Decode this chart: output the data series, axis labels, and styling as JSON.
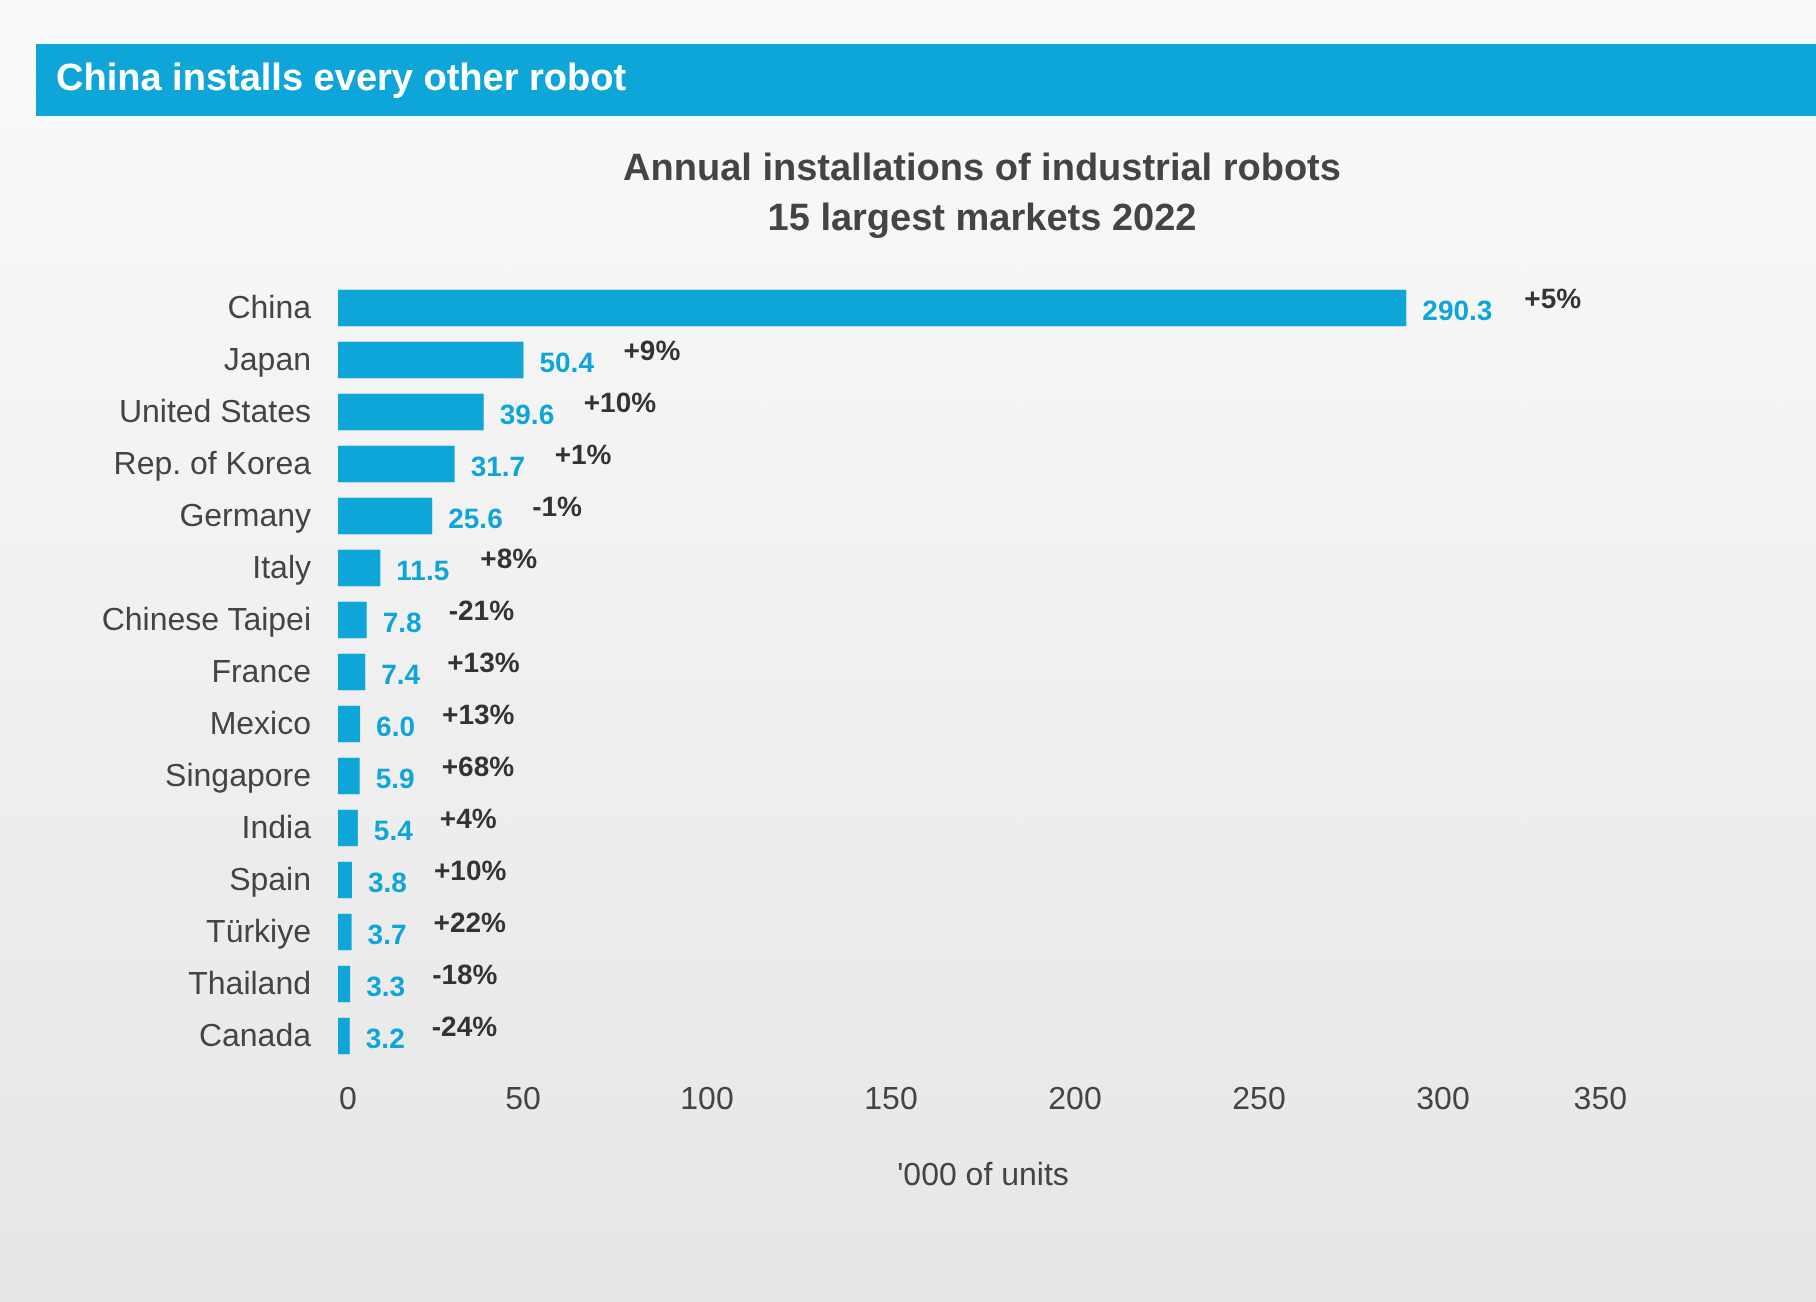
{
  "chart_data": {
    "type": "bar",
    "orientation": "horizontal",
    "title": "China installs every other robot",
    "subtitle": [
      "Annual installations of industrial robots",
      "15 largest markets 2022"
    ],
    "xlabel": "'000 of units",
    "categories": [
      "China",
      "Japan",
      "United States",
      "Rep. of Korea",
      "Germany",
      "Italy",
      "Chinese Taipei",
      "France",
      "Mexico",
      "Singapore",
      "India",
      "Spain",
      "Türkiye",
      "Thailand",
      "Canada"
    ],
    "values": [
      290.3,
      50.4,
      39.6,
      31.7,
      25.6,
      11.5,
      7.8,
      7.4,
      6.0,
      5.9,
      5.4,
      3.8,
      3.7,
      3.3,
      3.2
    ],
    "value_labels": [
      "290.3",
      "50.4",
      "39.6",
      "31.7",
      "25.6",
      "11.5",
      "7.8",
      "7.4",
      "6.0",
      "5.9",
      "5.4",
      "3.8",
      "3.7",
      "3.3",
      "3.2"
    ],
    "color": "#0ea5d9",
    "xlim": [
      0,
      350
    ],
    "xticks": [
      0,
      50,
      100,
      150,
      200,
      250,
      300,
      350
    ],
    "grid": false,
    "annotations": [
      "+5%",
      "+9%",
      "+10%",
      "+1%",
      "-1%",
      "+8%",
      "-21%",
      "+13%",
      "+13%",
      "+68%",
      "+4%",
      "+10%",
      "+22%",
      "-18%",
      "-24%"
    ]
  }
}
